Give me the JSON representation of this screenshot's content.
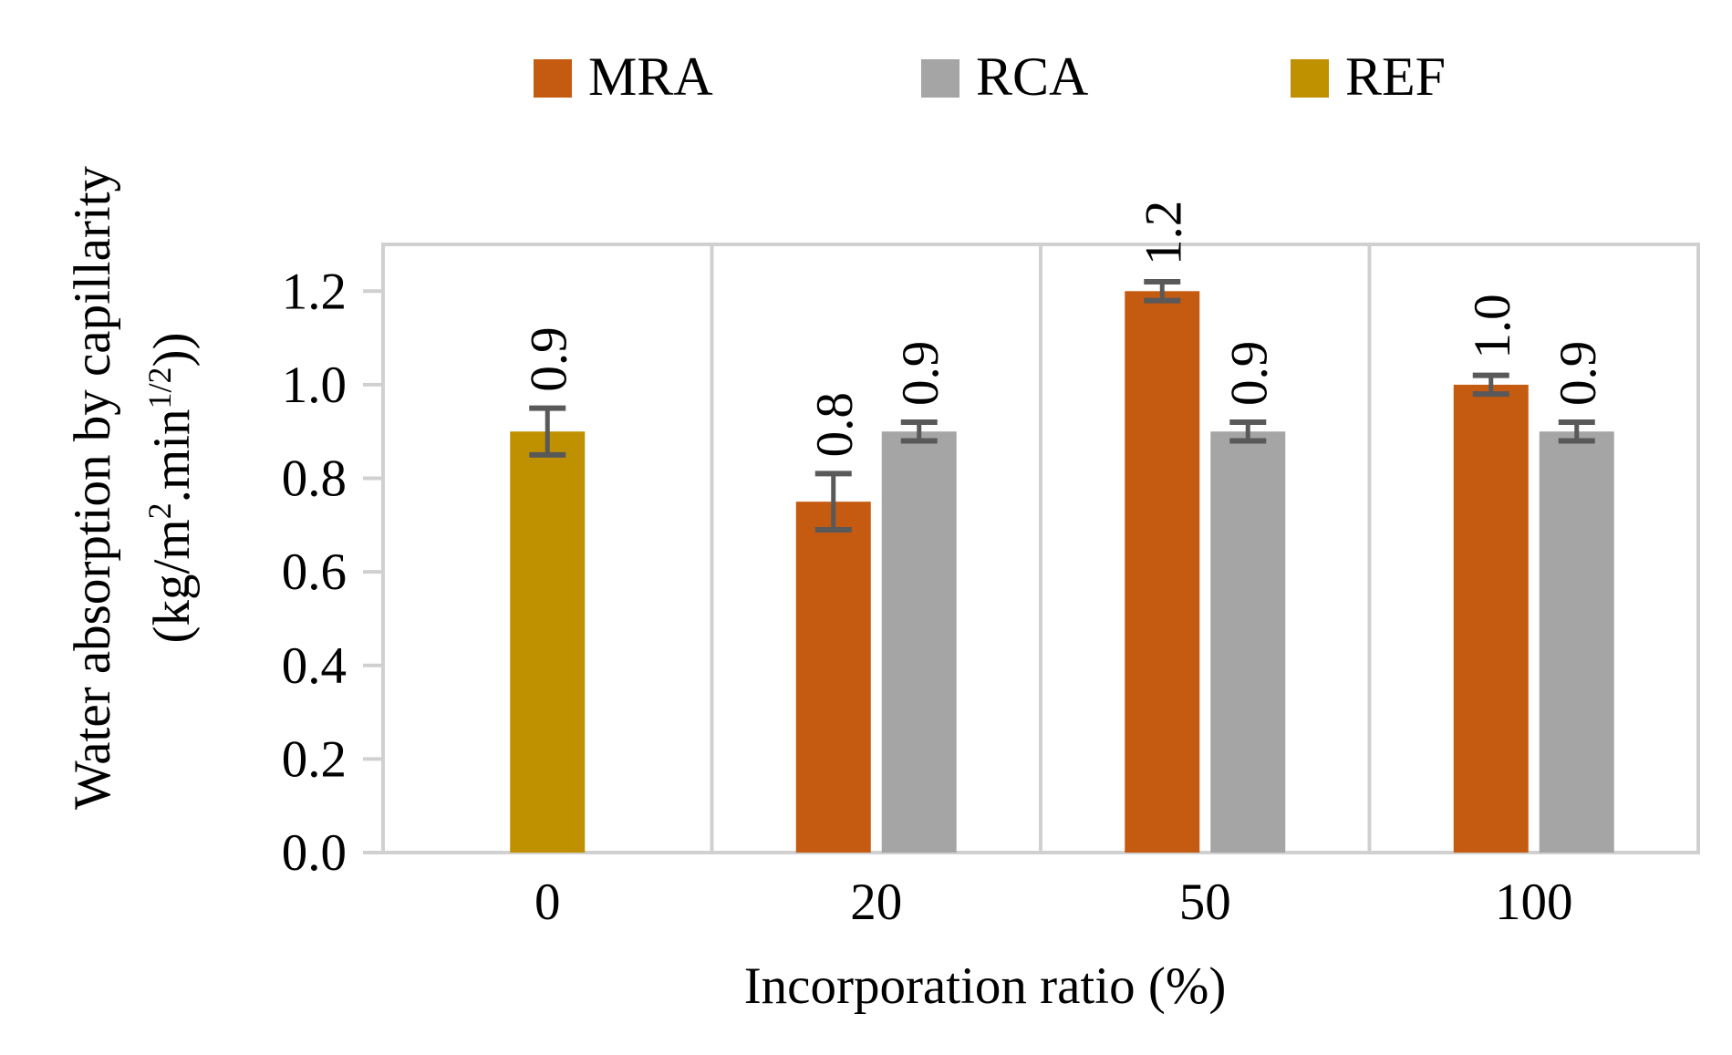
{
  "chart_data": {
    "type": "bar",
    "categories": [
      "0",
      "20",
      "50",
      "100"
    ],
    "series": [
      {
        "name": "MRA",
        "color": "#C55A11",
        "values": [
          null,
          0.75,
          1.2,
          1.0
        ],
        "errors": [
          null,
          0.06,
          0.02,
          0.02
        ],
        "labels": [
          null,
          "0.8",
          "1.2",
          "1.0"
        ]
      },
      {
        "name": "RCA",
        "color": "#A5A5A5",
        "values": [
          null,
          0.9,
          0.9,
          0.9
        ],
        "errors": [
          null,
          0.02,
          0.02,
          0.02
        ],
        "labels": [
          null,
          "0.9",
          "0.9",
          "0.9"
        ]
      },
      {
        "name": "REF",
        "color": "#BF9000",
        "values": [
          0.9,
          null,
          null,
          null
        ],
        "errors": [
          0.05,
          null,
          null,
          null
        ],
        "labels": [
          "0.9",
          null,
          null,
          null
        ]
      }
    ],
    "xlabel": "Incorporation ratio (%)",
    "ylabel": "Water absorption by capillarity",
    "ylabel_unit": {
      "open": "(kg/m",
      "sup1": "2",
      "mid": ".min",
      "sup2": "1/2",
      "close": "))"
    },
    "ylim": [
      0,
      1.3
    ],
    "yticks": [
      "0.0",
      "0.2",
      "0.4",
      "0.6",
      "0.8",
      "1.0",
      "1.2"
    ],
    "ytick_values": [
      0,
      0.2,
      0.4,
      0.6,
      0.8,
      1.0,
      1.2
    ],
    "legend_position": "top",
    "grid": "vertical category separators",
    "error_bar_color": "#595959",
    "frame_color": "#D0D0D0"
  }
}
